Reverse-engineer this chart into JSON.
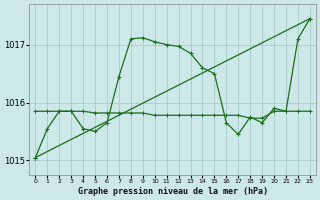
{
  "background_color": "#cce8e8",
  "grid_color": "#aacccc",
  "line_color": "#1a6e1a",
  "xlabel": "Graphe pression niveau de la mer (hPa)",
  "xlim": [
    -0.5,
    23.5
  ],
  "ylim": [
    1014.75,
    1017.7
  ],
  "yticks": [
    1015,
    1016,
    1017
  ],
  "xticks": [
    0,
    1,
    2,
    3,
    4,
    5,
    6,
    7,
    8,
    9,
    10,
    11,
    12,
    13,
    14,
    15,
    16,
    17,
    18,
    19,
    20,
    21,
    22,
    23
  ],
  "series1_x": [
    0,
    1,
    2,
    3,
    4,
    5,
    6,
    7,
    8,
    9,
    10,
    11,
    12,
    13,
    14,
    15,
    16,
    17,
    18,
    19,
    20,
    21,
    22,
    23
  ],
  "series1_y": [
    1015.05,
    1015.55,
    1015.85,
    1015.85,
    1015.55,
    1015.5,
    1015.65,
    1016.45,
    1017.1,
    1017.12,
    1017.05,
    1017.0,
    1016.97,
    1016.85,
    1016.6,
    1016.5,
    1015.65,
    1015.45,
    1015.75,
    1015.65,
    1015.9,
    1015.85,
    1017.1,
    1017.45
  ],
  "series2_x": [
    0,
    1,
    2,
    3,
    4,
    5,
    6,
    7,
    8,
    9,
    10,
    11,
    12,
    13,
    14,
    15,
    16,
    17,
    18,
    19,
    20,
    21,
    22,
    23
  ],
  "series2_y": [
    1015.85,
    1015.85,
    1015.85,
    1015.85,
    1015.85,
    1015.82,
    1015.82,
    1015.82,
    1015.82,
    1015.82,
    1015.78,
    1015.78,
    1015.78,
    1015.78,
    1015.78,
    1015.78,
    1015.78,
    1015.78,
    1015.73,
    1015.73,
    1015.85,
    1015.85,
    1015.85,
    1015.85
  ],
  "series3_x": [
    0,
    23
  ],
  "series3_y": [
    1015.05,
    1017.45
  ]
}
